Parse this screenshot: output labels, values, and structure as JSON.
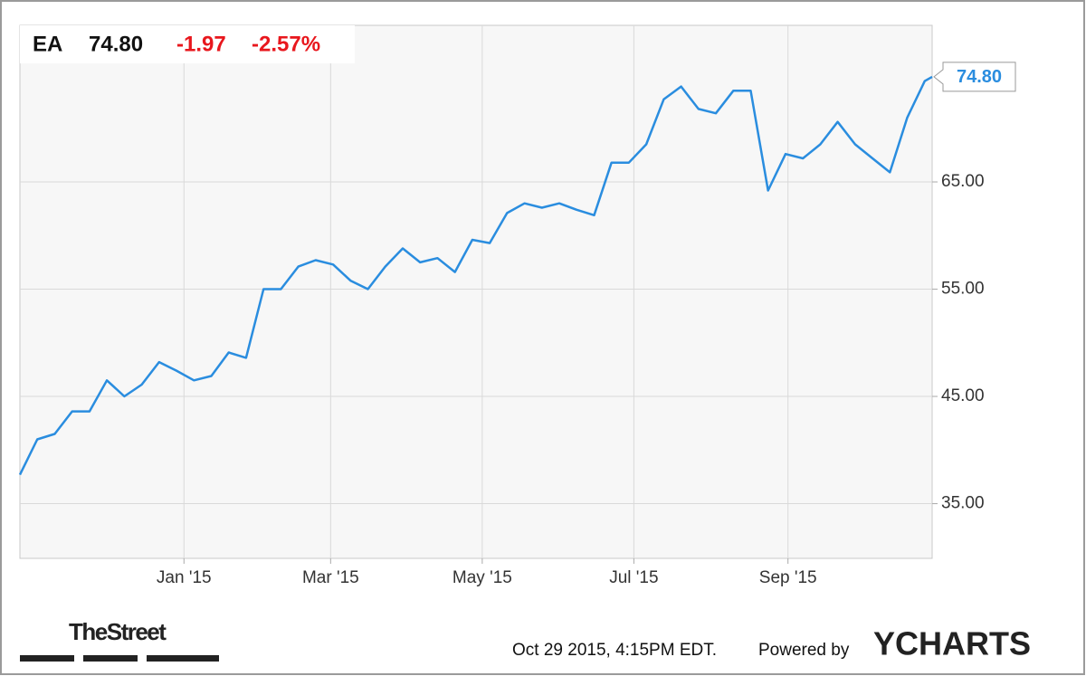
{
  "chart_data": {
    "type": "line",
    "ticker": "EA",
    "change": "-1.97",
    "change_pct": "-2.57%",
    "last": {
      "value": 74.8,
      "label": "74.80"
    },
    "x": [
      "2014-10-27",
      "2014-11-03",
      "2014-11-10",
      "2014-11-17",
      "2014-11-24",
      "2014-12-01",
      "2014-12-08",
      "2014-12-15",
      "2014-12-22",
      "2014-12-29",
      "2015-01-05",
      "2015-01-12",
      "2015-01-19",
      "2015-01-26",
      "2015-02-02",
      "2015-02-09",
      "2015-02-16",
      "2015-02-23",
      "2015-03-02",
      "2015-03-09",
      "2015-03-16",
      "2015-03-23",
      "2015-03-30",
      "2015-04-06",
      "2015-04-13",
      "2015-04-20",
      "2015-04-27",
      "2015-05-04",
      "2015-05-11",
      "2015-05-18",
      "2015-05-25",
      "2015-06-01",
      "2015-06-08",
      "2015-06-15",
      "2015-06-22",
      "2015-06-29",
      "2015-07-06",
      "2015-07-13",
      "2015-07-20",
      "2015-07-27",
      "2015-08-03",
      "2015-08-10",
      "2015-08-17",
      "2015-08-24",
      "2015-08-31",
      "2015-09-07",
      "2015-09-14",
      "2015-09-21",
      "2015-09-28",
      "2015-10-05",
      "2015-10-12",
      "2015-10-19",
      "2015-10-26",
      "2015-10-29"
    ],
    "series": [
      {
        "name": "EA",
        "color": "#2a8ddf",
        "values": [
          37.7,
          41.0,
          41.5,
          43.6,
          43.6,
          46.5,
          45.0,
          46.1,
          48.2,
          47.4,
          46.5,
          46.9,
          49.1,
          48.6,
          55.0,
          55.0,
          57.1,
          57.7,
          57.3,
          55.8,
          55.0,
          57.1,
          58.8,
          57.5,
          57.9,
          56.6,
          59.6,
          59.3,
          62.1,
          63.0,
          62.6,
          63.0,
          62.4,
          61.9,
          66.8,
          66.8,
          68.5,
          72.7,
          73.9,
          71.8,
          71.4,
          73.5,
          73.5,
          64.2,
          67.6,
          67.2,
          68.5,
          70.6,
          68.5,
          67.2,
          65.9,
          71.0,
          74.4,
          74.8
        ]
      }
    ],
    "xlim": [
      "2014-10-27",
      "2015-10-29"
    ],
    "xticks": [
      {
        "value": "2015-01-01",
        "label": "Jan '15"
      },
      {
        "value": "2015-03-01",
        "label": "Mar '15"
      },
      {
        "value": "2015-05-01",
        "label": "May '15"
      },
      {
        "value": "2015-07-01",
        "label": "Jul '15"
      },
      {
        "value": "2015-09-01",
        "label": "Sep '15"
      }
    ],
    "ylim": [
      29.9,
      79.6
    ],
    "yticks": [
      {
        "value": 35,
        "label": "35.00"
      },
      {
        "value": 45,
        "label": "45.00"
      },
      {
        "value": 55,
        "label": "55.00"
      },
      {
        "value": 65,
        "label": "65.00"
      }
    ],
    "grid": true,
    "footer": {
      "brand": "TheStreet",
      "timestamp": "Oct 29 2015, 4:15PM EDT.",
      "powered": "Powered by",
      "provider": "YCHARTS"
    }
  }
}
